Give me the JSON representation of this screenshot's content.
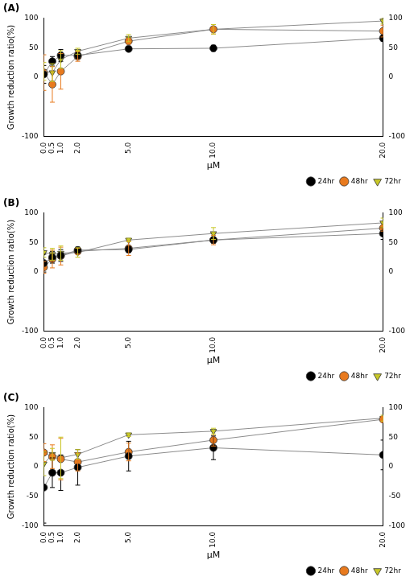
{
  "chart_data": [
    {
      "type": "line",
      "title": "(A)",
      "x_label": "μM",
      "y_label": "Growth reduction ratio(%)",
      "x": [
        0,
        0.5,
        1,
        2,
        5,
        10,
        20
      ],
      "xlim": [
        0,
        20
      ],
      "xticks": [
        {
          "value": 0,
          "label": "0.0"
        },
        {
          "value": 0.5,
          "label": "0.5"
        },
        {
          "value": 1,
          "label": "1.0"
        },
        {
          "value": 2,
          "label": "2.0"
        },
        {
          "value": 5,
          "label": "5.0"
        },
        {
          "value": 10,
          "label": "10.0"
        },
        {
          "value": 20,
          "label": "20.0"
        }
      ],
      "ylim": [
        -100,
        100
      ],
      "yticks": [
        -100,
        0,
        50,
        100
      ],
      "y2lim": [
        -100,
        100
      ],
      "y2ticks": [
        -100,
        0,
        50,
        100
      ],
      "grid": false,
      "legend": "lower right",
      "series": [
        {
          "name": "24hr",
          "color": "#000000",
          "marker": "circle",
          "line_style": "solid",
          "values": [
            5,
            27,
            37,
            37,
            48,
            49,
            66
          ],
          "errors": [
            15,
            8,
            10,
            5,
            2,
            5,
            5
          ]
        },
        {
          "name": "48hr",
          "color": "#e87a1e",
          "marker": "circle",
          "line_style": "solid",
          "values": [
            8,
            -12,
            10,
            35,
            61,
            81,
            78
          ],
          "errors": [
            30,
            30,
            30,
            8,
            5,
            8,
            10
          ]
        },
        {
          "name": "72hr",
          "color": "#c8c828",
          "marker": "triangle_down",
          "line_style": "solid",
          "values": [
            10,
            8,
            30,
            44,
            66,
            81,
            95
          ],
          "errors": [
            15,
            15,
            15,
            5,
            6,
            8,
            5
          ]
        }
      ]
    },
    {
      "type": "line",
      "title": "(B)",
      "x_label": "μM",
      "y_label": "Growth reduction ratio(%)",
      "x": [
        0,
        0.5,
        1,
        2,
        5,
        10,
        20
      ],
      "xlim": [
        0,
        20
      ],
      "xticks": [
        {
          "value": 0,
          "label": "0.0"
        },
        {
          "value": 0.5,
          "label": "0.5"
        },
        {
          "value": 1,
          "label": "1.0"
        },
        {
          "value": 2,
          "label": "2.0"
        },
        {
          "value": 5,
          "label": "5.0"
        },
        {
          "value": 10,
          "label": "10.0"
        },
        {
          "value": 20,
          "label": "20.0"
        }
      ],
      "ylim": [
        -100,
        100
      ],
      "yticks": [
        -100,
        0,
        50,
        100
      ],
      "y2lim": [
        -100,
        100
      ],
      "y2ticks": [
        -100,
        0,
        50,
        100
      ],
      "grid": false,
      "legend": "lower right",
      "series": [
        {
          "name": "24hr",
          "color": "#000000",
          "marker": "circle",
          "line_style": "solid",
          "values": [
            15,
            25,
            28,
            37,
            38,
            54,
            65
          ],
          "errors": [
            15,
            10,
            10,
            5,
            5,
            5,
            10
          ]
        },
        {
          "name": "48hr",
          "color": "#e87a1e",
          "marker": "circle",
          "line_style": "solid",
          "values": [
            8,
            22,
            27,
            35,
            40,
            54,
            74
          ],
          "errors": [
            10,
            15,
            15,
            5,
            12,
            8,
            5
          ]
        },
        {
          "name": "72hr",
          "color": "#c8c828",
          "marker": "triangle_down",
          "line_style": "solid",
          "values": [
            33,
            30,
            32,
            33,
            54,
            65,
            83
          ],
          "errors": [
            8,
            10,
            12,
            8,
            3,
            10,
            8
          ]
        }
      ]
    },
    {
      "type": "line",
      "title": "(C)",
      "x_label": "μM",
      "y_label": "Growth reduction ratio(%)",
      "x": [
        0,
        0.5,
        1,
        2,
        5,
        10,
        20
      ],
      "xlim": [
        0,
        20
      ],
      "xticks": [
        {
          "value": 0,
          "label": "0.0"
        },
        {
          "value": 0.5,
          "label": "0.5"
        },
        {
          "value": 1,
          "label": "1.0"
        },
        {
          "value": 2,
          "label": "2.0"
        },
        {
          "value": 5,
          "label": "5.0"
        },
        {
          "value": 10,
          "label": "10.0"
        },
        {
          "value": 20,
          "label": "20.0"
        }
      ],
      "ylim": [
        -100,
        100
      ],
      "yticks": [
        -100,
        -50,
        0,
        50,
        100
      ],
      "y2lim": [
        -100,
        100
      ],
      "y2ticks": [
        -100,
        -50,
        0,
        50,
        100
      ],
      "grid": false,
      "legend": "lower right",
      "series": [
        {
          "name": "24hr",
          "color": "#000000",
          "marker": "circle",
          "line_style": "solid",
          "values": [
            -35,
            -10,
            -10,
            -1,
            18,
            32,
            20
          ],
          "errors": [
            60,
            25,
            30,
            30,
            25,
            20,
            25
          ]
        },
        {
          "name": "48hr",
          "color": "#e87a1e",
          "marker": "circle",
          "line_style": "solid",
          "values": [
            24,
            17,
            13,
            8,
            25,
            45,
            80
          ],
          "errors": [
            15,
            20,
            35,
            15,
            15,
            10,
            5
          ]
        },
        {
          "name": "72hr",
          "color": "#c8c828",
          "marker": "triangle_down",
          "line_style": "solid",
          "values": [
            5,
            21,
            15,
            21,
            54,
            60,
            82
          ],
          "errors": [
            20,
            10,
            35,
            8,
            3,
            5,
            5
          ]
        }
      ]
    }
  ]
}
